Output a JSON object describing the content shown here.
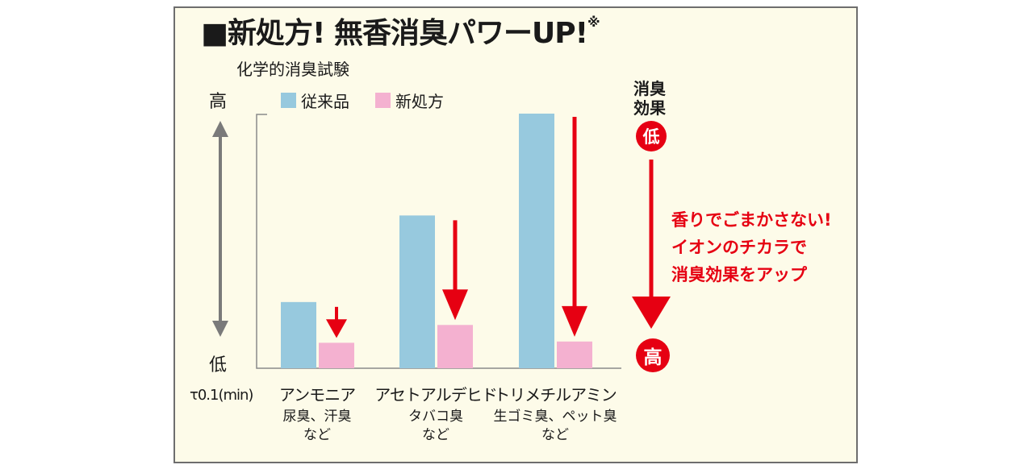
{
  "heading": {
    "text": "■新処方! 無香消臭パワーUP!",
    "mark": "※"
  },
  "subtitle": "化学的消臭試験",
  "yaxis": {
    "top_label": "高",
    "bottom_label": "低",
    "unit_label": "τ0.1(min)"
  },
  "colors": {
    "conventional": "#97c9de",
    "new": "#f4b1d0",
    "accent_red": "#e60012",
    "axis_arrow": "#7a7a7a"
  },
  "legend": [
    {
      "label": "従来品"
    },
    {
      "label": "新処方"
    }
  ],
  "chart_data": {
    "type": "bar",
    "title": "化学的消臭試験",
    "ylabel": "τ0.1(min)",
    "ylim": [
      0,
      100
    ],
    "categories": [
      "アンモニア",
      "アセトアルデヒド",
      "トリメチルアミン"
    ],
    "category_notes": [
      "尿臭、汗臭\nなど",
      "タバコ臭\nなど",
      "生ゴミ臭、ペット臭\nなど"
    ],
    "series": [
      {
        "name": "従来品",
        "values": [
          26,
          60,
          100
        ]
      },
      {
        "name": "新処方",
        "values": [
          10,
          17,
          10.5
        ]
      }
    ],
    "grid": false,
    "legend_position": "top-left"
  },
  "side_scale": {
    "label": "消臭\n効果",
    "low": "低",
    "high": "高"
  },
  "callout": {
    "lines": [
      "香りでごまかさない!",
      "イオンのチカラで",
      "消臭効果をアップ"
    ]
  }
}
